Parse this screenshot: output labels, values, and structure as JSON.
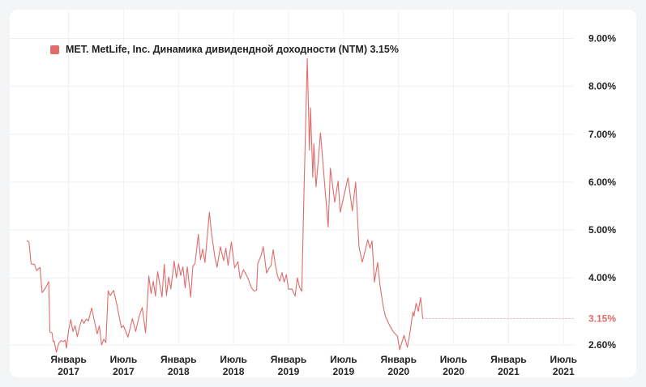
{
  "chart_data": {
    "type": "line",
    "legend_label": "MET. MetLife, Inc. Динамика дивидендной доходности (NTM) 3.15%",
    "line_color": "#e06c6c",
    "current_value_label": "3.15%",
    "current_value": 3.15,
    "ylim": [
      2.6,
      9.6
    ],
    "y_ticks": [
      {
        "label": "9.00%",
        "value": 9.0
      },
      {
        "label": "8.00%",
        "value": 8.0
      },
      {
        "label": "7.00%",
        "value": 7.0
      },
      {
        "label": "6.00%",
        "value": 6.0
      },
      {
        "label": "5.00%",
        "value": 5.0
      },
      {
        "label": "4.00%",
        "value": 4.0
      },
      {
        "label": "2.60%",
        "value": 2.6
      }
    ],
    "x_ticks": [
      {
        "month": "Январь",
        "year": "2017",
        "date": 2017.0
      },
      {
        "month": "Июль",
        "year": "2017",
        "date": 2017.5
      },
      {
        "month": "Январь",
        "year": "2018",
        "date": 2018.0
      },
      {
        "month": "Июль",
        "year": "2018",
        "date": 2018.5
      },
      {
        "month": "Январь",
        "year": "2019",
        "date": 2019.0
      },
      {
        "month": "Июль",
        "year": "2019",
        "date": 2019.5
      },
      {
        "month": "Январь",
        "year": "2020",
        "date": 2020.0
      },
      {
        "month": "Июль",
        "year": "2020",
        "date": 2020.5
      },
      {
        "month": "Январь",
        "year": "2021",
        "date": 2021.0
      },
      {
        "month": "Июль",
        "year": "2021",
        "date": 2021.5
      }
    ],
    "xlim": [
      2016.62,
      2021.52
    ],
    "series": [
      {
        "points": [
          [
            2016.62,
            4.78
          ],
          [
            2016.64,
            4.75
          ],
          [
            2016.66,
            4.29
          ],
          [
            2016.69,
            4.28
          ],
          [
            2016.71,
            4.15
          ],
          [
            2016.74,
            4.22
          ],
          [
            2016.76,
            3.69
          ],
          [
            2016.79,
            3.79
          ],
          [
            2016.82,
            3.92
          ],
          [
            2016.83,
            2.87
          ],
          [
            2016.85,
            2.85
          ],
          [
            2016.86,
            2.67
          ],
          [
            2016.87,
            2.68
          ],
          [
            2016.88,
            2.55
          ],
          [
            2016.89,
            2.45
          ],
          [
            2016.91,
            2.63
          ],
          [
            2016.93,
            2.69
          ],
          [
            2016.95,
            2.67
          ],
          [
            2016.97,
            2.7
          ],
          [
            2016.98,
            2.53
          ],
          [
            2017.0,
            2.9
          ],
          [
            2017.02,
            3.13
          ],
          [
            2017.04,
            2.88
          ],
          [
            2017.06,
            3.0
          ],
          [
            2017.08,
            2.77
          ],
          [
            2017.1,
            2.97
          ],
          [
            2017.12,
            3.13
          ],
          [
            2017.14,
            3.05
          ],
          [
            2017.16,
            3.14
          ],
          [
            2017.18,
            3.1
          ],
          [
            2017.21,
            3.37
          ],
          [
            2017.23,
            3.15
          ],
          [
            2017.26,
            2.83
          ],
          [
            2017.28,
            3.0
          ],
          [
            2017.3,
            2.6
          ],
          [
            2017.32,
            2.72
          ],
          [
            2017.34,
            2.65
          ],
          [
            2017.36,
            3.73
          ],
          [
            2017.38,
            3.63
          ],
          [
            2017.41,
            3.74
          ],
          [
            2017.44,
            3.43
          ],
          [
            2017.48,
            2.96
          ],
          [
            2017.5,
            3.0
          ],
          [
            2017.54,
            2.76
          ],
          [
            2017.58,
            3.15
          ],
          [
            2017.61,
            2.88
          ],
          [
            2017.64,
            3.18
          ],
          [
            2017.67,
            3.38
          ],
          [
            2017.7,
            2.85
          ],
          [
            2017.73,
            4.04
          ],
          [
            2017.75,
            3.67
          ],
          [
            2017.77,
            3.93
          ],
          [
            2017.79,
            3.62
          ],
          [
            2017.81,
            4.13
          ],
          [
            2017.83,
            3.86
          ],
          [
            2017.85,
            3.6
          ],
          [
            2017.87,
            4.28
          ],
          [
            2017.89,
            3.63
          ],
          [
            2017.91,
            4.02
          ],
          [
            2017.93,
            3.77
          ],
          [
            2017.96,
            4.35
          ],
          [
            2017.98,
            4.0
          ],
          [
            2018.0,
            4.29
          ],
          [
            2018.02,
            4.05
          ],
          [
            2018.04,
            4.23
          ],
          [
            2018.06,
            3.79
          ],
          [
            2018.08,
            4.23
          ],
          [
            2018.11,
            3.6
          ],
          [
            2018.13,
            4.24
          ],
          [
            2018.15,
            4.3
          ],
          [
            2018.18,
            4.91
          ],
          [
            2018.2,
            4.38
          ],
          [
            2018.22,
            4.6
          ],
          [
            2018.24,
            4.32
          ],
          [
            2018.26,
            4.84
          ],
          [
            2018.28,
            5.37
          ],
          [
            2018.3,
            4.93
          ],
          [
            2018.33,
            4.43
          ],
          [
            2018.35,
            4.22
          ],
          [
            2018.38,
            4.65
          ],
          [
            2018.41,
            4.36
          ],
          [
            2018.43,
            4.62
          ],
          [
            2018.45,
            4.26
          ],
          [
            2018.48,
            4.75
          ],
          [
            2018.51,
            4.21
          ],
          [
            2018.54,
            4.34
          ],
          [
            2018.56,
            3.98
          ],
          [
            2018.59,
            4.17
          ],
          [
            2018.63,
            4.0
          ],
          [
            2018.66,
            3.8
          ],
          [
            2018.69,
            3.72
          ],
          [
            2018.71,
            3.75
          ],
          [
            2018.72,
            4.29
          ],
          [
            2018.75,
            4.47
          ],
          [
            2018.77,
            4.65
          ],
          [
            2018.8,
            4.1
          ],
          [
            2018.82,
            4.19
          ],
          [
            2018.84,
            4.26
          ],
          [
            2018.86,
            4.59
          ],
          [
            2018.88,
            4.27
          ],
          [
            2018.9,
            4.04
          ],
          [
            2018.92,
            3.93
          ],
          [
            2018.94,
            4.11
          ],
          [
            2018.96,
            3.91
          ],
          [
            2018.98,
            4.07
          ],
          [
            2019.0,
            3.76
          ],
          [
            2019.03,
            3.77
          ],
          [
            2019.06,
            3.62
          ],
          [
            2019.08,
            4.0
          ],
          [
            2019.1,
            3.8
          ],
          [
            2019.12,
            3.72
          ],
          [
            2019.14,
            5.76
          ],
          [
            2019.17,
            8.58
          ],
          [
            2019.19,
            6.67
          ],
          [
            2019.2,
            7.55
          ],
          [
            2019.22,
            6.1
          ],
          [
            2019.23,
            6.8
          ],
          [
            2019.25,
            5.9
          ],
          [
            2019.27,
            6.43
          ],
          [
            2019.29,
            7.03
          ],
          [
            2019.33,
            5.9
          ],
          [
            2019.36,
            5.06
          ],
          [
            2019.38,
            6.29
          ],
          [
            2019.42,
            5.58
          ],
          [
            2019.45,
            6.02
          ],
          [
            2019.47,
            5.37
          ],
          [
            2019.54,
            6.09
          ],
          [
            2019.58,
            5.4
          ],
          [
            2019.61,
            6.0
          ],
          [
            2019.64,
            4.65
          ],
          [
            2019.67,
            4.33
          ],
          [
            2019.69,
            4.5
          ],
          [
            2019.72,
            4.8
          ],
          [
            2019.74,
            4.62
          ],
          [
            2019.76,
            4.77
          ],
          [
            2019.78,
            3.91
          ],
          [
            2019.81,
            4.32
          ],
          [
            2019.83,
            3.88
          ],
          [
            2019.86,
            3.41
          ],
          [
            2019.88,
            3.2
          ],
          [
            2019.92,
            3.0
          ],
          [
            2019.95,
            2.88
          ],
          [
            2019.99,
            2.78
          ],
          [
            2020.01,
            2.5
          ],
          [
            2020.05,
            2.8
          ],
          [
            2020.08,
            2.55
          ],
          [
            2020.1,
            2.8
          ],
          [
            2020.13,
            3.29
          ],
          [
            2020.14,
            3.2
          ],
          [
            2020.16,
            3.47
          ],
          [
            2020.18,
            3.3
          ],
          [
            2020.2,
            3.59
          ],
          [
            2020.22,
            3.15
          ]
        ]
      }
    ]
  }
}
